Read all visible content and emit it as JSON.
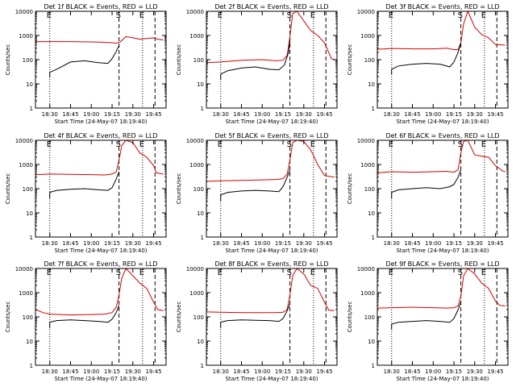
{
  "figure": {
    "ylabel": "Counts/sec",
    "xlabel": "Start Time (24-May-07 18:19:40)",
    "xticklabels": [
      "18:30",
      "18:45",
      "19:00",
      "19:15",
      "19:30",
      "19:45"
    ],
    "yticklabels": [
      "1",
      "10",
      "100",
      "1000",
      "10000"
    ],
    "markers": {
      "E": "E",
      "S": "S"
    },
    "colors": {
      "events": "#000000",
      "lld": "#d40000",
      "axes": "#000000",
      "background": "#ffffff"
    }
  },
  "chart_data": [
    {
      "type": "line",
      "title": "Det 1f BLACK = Events, RED = LLD",
      "xlabel": "Start Time (24-May-07 18:19:40)",
      "ylabel": "Counts/sec",
      "xlim": [
        "18:19:40",
        "19:54:00"
      ],
      "ylim": [
        1,
        10000
      ],
      "yscale": "log",
      "markers": [
        {
          "label": "E",
          "time": "18:30",
          "style": "dotted"
        },
        {
          "label": "S",
          "time": "19:20",
          "style": "dashed"
        },
        {
          "label": "E",
          "time": "19:37",
          "style": "dotted"
        },
        {
          "label": "",
          "time": "19:46",
          "style": "dashed"
        }
      ],
      "series": [
        {
          "name": "LLD",
          "color": "#d40000",
          "x": [
            "18:19:40",
            "18:30",
            "18:45",
            "19:00",
            "19:10",
            "19:15",
            "19:18",
            "19:21",
            "19:25",
            "19:30",
            "19:35",
            "19:40",
            "19:45",
            "19:48",
            "19:52"
          ],
          "y": [
            550,
            560,
            560,
            540,
            520,
            500,
            480,
            550,
            900,
            800,
            700,
            750,
            800,
            700,
            650
          ]
        },
        {
          "name": "Events",
          "color": "#000000",
          "x": [
            "18:30",
            "18:30",
            "18:35",
            "18:45",
            "18:55",
            "19:05",
            "19:12",
            "19:15",
            "19:18",
            "19:20"
          ],
          "y": [
            18,
            30,
            40,
            80,
            90,
            75,
            70,
            110,
            220,
            380
          ]
        }
      ]
    },
    {
      "type": "line",
      "title": "Det 2f BLACK = Events, RED = LLD",
      "xlabel": "Start Time (24-May-07 18:19:40)",
      "ylabel": "Counts/sec",
      "xlim": [
        "18:19:40",
        "19:54:00"
      ],
      "ylim": [
        1,
        10000
      ],
      "yscale": "log",
      "markers": [
        {
          "label": "E",
          "time": "18:30",
          "style": "dotted"
        },
        {
          "label": "S",
          "time": "19:20",
          "style": "dashed"
        },
        {
          "label": "E",
          "time": "19:37",
          "style": "dotted"
        },
        {
          "label": "",
          "time": "19:46",
          "style": "dashed"
        }
      ],
      "series": [
        {
          "name": "LLD",
          "color": "#d40000",
          "x": [
            "18:19:40",
            "18:30",
            "18:45",
            "19:00",
            "19:10",
            "19:15",
            "19:18",
            "19:20",
            "19:22",
            "19:25",
            "19:30",
            "19:35",
            "19:40",
            "19:45",
            "19:50",
            "19:52"
          ],
          "y": [
            75,
            80,
            95,
            100,
            90,
            95,
            150,
            900,
            8000,
            10000,
            4000,
            1600,
            1000,
            500,
            110,
            100
          ]
        },
        {
          "name": "Events",
          "color": "#000000",
          "x": [
            "18:30",
            "18:30",
            "18:35",
            "18:45",
            "18:55",
            "19:05",
            "19:12",
            "19:16",
            "19:19",
            "19:20"
          ],
          "y": [
            15,
            25,
            35,
            45,
            50,
            40,
            38,
            60,
            200,
            600
          ]
        }
      ]
    },
    {
      "type": "line",
      "title": "Det 3f BLACK = Events, RED = LLD",
      "xlabel": "Start Time (24-May-07 18:19:40)",
      "ylabel": "Counts/sec",
      "xlim": [
        "18:19:40",
        "19:54:00"
      ],
      "ylim": [
        1,
        10000
      ],
      "yscale": "log",
      "markers": [
        {
          "label": "E",
          "time": "18:30",
          "style": "dotted"
        },
        {
          "label": "S",
          "time": "19:20",
          "style": "dashed"
        },
        {
          "label": "E",
          "time": "19:37",
          "style": "dotted"
        },
        {
          "label": "",
          "time": "19:46",
          "style": "dashed"
        }
      ],
      "series": [
        {
          "name": "LLD",
          "color": "#d40000",
          "x": [
            "18:19:40",
            "18:30",
            "18:45",
            "19:00",
            "19:10",
            "19:15",
            "19:18",
            "19:20",
            "19:22",
            "19:25",
            "19:30",
            "19:35",
            "19:40",
            "19:45",
            "19:52"
          ],
          "y": [
            270,
            290,
            280,
            280,
            300,
            260,
            260,
            500,
            3000,
            10000,
            2200,
            1100,
            800,
            420,
            400
          ]
        },
        {
          "name": "Events",
          "color": "#000000",
          "x": [
            "18:30",
            "18:30",
            "18:35",
            "18:45",
            "18:55",
            "19:05",
            "19:12",
            "19:15",
            "19:18",
            "19:20"
          ],
          "y": [
            25,
            40,
            55,
            65,
            70,
            65,
            50,
            80,
            200,
            500
          ]
        }
      ]
    },
    {
      "type": "line",
      "title": "Det 4f BLACK = Events, RED = LLD",
      "xlabel": "Start Time (24-May-07 18:19:40)",
      "ylabel": "Counts/sec",
      "xlim": [
        "18:19:40",
        "19:54:00"
      ],
      "ylim": [
        1,
        10000
      ],
      "yscale": "log",
      "markers": [
        {
          "label": "E",
          "time": "18:30",
          "style": "dotted"
        },
        {
          "label": "S",
          "time": "19:20",
          "style": "dashed"
        },
        {
          "label": "E",
          "time": "19:37",
          "style": "dotted"
        },
        {
          "label": "",
          "time": "19:46",
          "style": "dashed"
        }
      ],
      "series": [
        {
          "name": "LLD",
          "color": "#d40000",
          "x": [
            "18:19:40",
            "18:30",
            "18:45",
            "19:00",
            "19:10",
            "19:15",
            "19:18",
            "19:20",
            "19:22",
            "19:25",
            "19:30",
            "19:35",
            "19:40",
            "19:45",
            "19:47",
            "19:52"
          ],
          "y": [
            380,
            400,
            390,
            380,
            370,
            400,
            500,
            1500,
            6000,
            10000,
            8000,
            3000,
            2000,
            900,
            450,
            400
          ]
        },
        {
          "name": "Events",
          "color": "#000000",
          "x": [
            "18:30",
            "18:30",
            "18:35",
            "18:45",
            "18:55",
            "19:05",
            "19:12",
            "19:15",
            "19:18",
            "19:20"
          ],
          "y": [
            40,
            70,
            85,
            95,
            100,
            90,
            85,
            110,
            250,
            500
          ]
        }
      ]
    },
    {
      "type": "line",
      "title": "Det 5f BLACK = Events, RED = LLD",
      "xlabel": "Start Time (24-May-07 18:19:40)",
      "ylabel": "Counts/sec",
      "xlim": [
        "18:19:40",
        "19:54:00"
      ],
      "ylim": [
        1,
        10000
      ],
      "yscale": "log",
      "markers": [
        {
          "label": "E",
          "time": "18:30",
          "style": "dotted"
        },
        {
          "label": "S",
          "time": "19:20",
          "style": "dashed"
        },
        {
          "label": "E",
          "time": "19:37",
          "style": "dotted"
        },
        {
          "label": "",
          "time": "19:46",
          "style": "dashed"
        }
      ],
      "series": [
        {
          "name": "LLD",
          "color": "#d40000",
          "x": [
            "18:19:40",
            "18:30",
            "18:45",
            "19:00",
            "19:10",
            "19:15",
            "19:18",
            "19:20",
            "19:22",
            "19:25",
            "19:30",
            "19:35",
            "19:40",
            "19:45",
            "19:52"
          ],
          "y": [
            200,
            210,
            220,
            230,
            240,
            260,
            400,
            1500,
            8000,
            10000,
            9000,
            4000,
            1000,
            350,
            300
          ]
        },
        {
          "name": "Events",
          "color": "#000000",
          "x": [
            "18:30",
            "18:30",
            "18:35",
            "18:45",
            "18:55",
            "19:05",
            "19:12",
            "19:15",
            "19:18",
            "19:20"
          ],
          "y": [
            30,
            55,
            70,
            80,
            85,
            80,
            75,
            120,
            300,
            600
          ]
        }
      ]
    },
    {
      "type": "line",
      "title": "Det 6f BLACK = Events, RED = LLD",
      "xlabel": "Start Time (24-May-07 18:19:40)",
      "ylabel": "Counts/sec",
      "xlim": [
        "18:19:40",
        "19:54:00"
      ],
      "ylim": [
        1,
        10000
      ],
      "yscale": "log",
      "markers": [
        {
          "label": "E",
          "time": "18:30",
          "style": "dotted"
        },
        {
          "label": "S",
          "time": "19:20",
          "style": "dashed"
        },
        {
          "label": "E",
          "time": "19:37",
          "style": "dotted"
        },
        {
          "label": "",
          "time": "19:46",
          "style": "dashed"
        }
      ],
      "series": [
        {
          "name": "LLD",
          "color": "#d40000",
          "x": [
            "18:19:40",
            "18:30",
            "18:45",
            "19:00",
            "19:10",
            "19:15",
            "19:18",
            "19:20",
            "19:22",
            "19:25",
            "19:30",
            "19:35",
            "19:40",
            "19:45",
            "19:50",
            "19:52"
          ],
          "y": [
            450,
            500,
            480,
            500,
            520,
            480,
            600,
            3000,
            9000,
            10000,
            2500,
            2200,
            2000,
            900,
            550,
            500
          ]
        },
        {
          "name": "Events",
          "color": "#000000",
          "x": [
            "18:30",
            "18:30",
            "18:35",
            "18:45",
            "18:55",
            "19:05",
            "19:12",
            "19:15",
            "19:18",
            "19:20"
          ],
          "y": [
            40,
            70,
            90,
            100,
            110,
            100,
            120,
            150,
            300,
            600
          ]
        }
      ]
    },
    {
      "type": "line",
      "title": "Det 7f BLACK = Events, RED = LLD",
      "xlabel": "Start Time (24-May-07 18:19:40)",
      "ylabel": "Counts/sec",
      "xlim": [
        "18:19:40",
        "19:54:00"
      ],
      "ylim": [
        1,
        10000
      ],
      "yscale": "log",
      "markers": [
        {
          "label": "E",
          "time": "18:30",
          "style": "dotted"
        },
        {
          "label": "S",
          "time": "19:20",
          "style": "dashed"
        },
        {
          "label": "E",
          "time": "19:37",
          "style": "dotted"
        },
        {
          "label": "",
          "time": "19:46",
          "style": "dashed"
        }
      ],
      "series": [
        {
          "name": "LLD",
          "color": "#d40000",
          "x": [
            "18:19:40",
            "18:25",
            "18:30",
            "18:45",
            "19:00",
            "19:10",
            "19:15",
            "19:18",
            "19:20",
            "19:22",
            "19:25",
            "19:30",
            "19:35",
            "19:40",
            "19:45",
            "19:48",
            "19:52"
          ],
          "y": [
            200,
            150,
            130,
            120,
            125,
            130,
            150,
            250,
            800,
            4000,
            10000,
            5000,
            2500,
            1500,
            400,
            200,
            180
          ]
        },
        {
          "name": "Events",
          "color": "#000000",
          "x": [
            "18:30",
            "18:30",
            "18:35",
            "18:45",
            "18:55",
            "19:05",
            "19:12",
            "19:15",
            "19:18",
            "19:20"
          ],
          "y": [
            35,
            60,
            70,
            75,
            70,
            65,
            60,
            80,
            150,
            300
          ]
        }
      ]
    },
    {
      "type": "line",
      "title": "Det 8f BLACK = Events, RED = LLD",
      "xlabel": "Start Time (24-May-07 18:19:40)",
      "ylabel": "Counts/sec",
      "xlim": [
        "18:19:40",
        "19:54:00"
      ],
      "ylim": [
        1,
        10000
      ],
      "yscale": "log",
      "markers": [
        {
          "label": "E",
          "time": "18:30",
          "style": "dotted"
        },
        {
          "label": "S",
          "time": "19:20",
          "style": "dashed"
        },
        {
          "label": "E",
          "time": "19:37",
          "style": "dotted"
        },
        {
          "label": "",
          "time": "19:46",
          "style": "dashed"
        }
      ],
      "series": [
        {
          "name": "LLD",
          "color": "#d40000",
          "x": [
            "18:19:40",
            "18:30",
            "18:45",
            "19:00",
            "19:10",
            "19:15",
            "19:18",
            "19:20",
            "19:22",
            "19:25",
            "19:30",
            "19:35",
            "19:40",
            "19:45",
            "19:48",
            "19:52"
          ],
          "y": [
            160,
            155,
            150,
            150,
            150,
            155,
            200,
            800,
            5000,
            10000,
            6000,
            2000,
            1500,
            400,
            190,
            180
          ]
        },
        {
          "name": "Events",
          "color": "#000000",
          "x": [
            "18:30",
            "18:30",
            "18:35",
            "18:45",
            "18:55",
            "19:05",
            "19:12",
            "19:15",
            "19:18",
            "19:20"
          ],
          "y": [
            35,
            60,
            70,
            75,
            72,
            70,
            65,
            85,
            180,
            350
          ]
        }
      ]
    },
    {
      "type": "line",
      "title": "Det 9f BLACK = Events, RED = LLD",
      "xlabel": "Start Time (24-May-07 18:19:40)",
      "ylabel": "Counts/sec",
      "xlim": [
        "18:19:40",
        "19:54:00"
      ],
      "ylim": [
        1,
        10000
      ],
      "yscale": "log",
      "markers": [
        {
          "label": "E",
          "time": "18:30",
          "style": "dotted"
        },
        {
          "label": "S",
          "time": "19:20",
          "style": "dashed"
        },
        {
          "label": "E",
          "time": "19:37",
          "style": "dotted"
        },
        {
          "label": "",
          "time": "19:46",
          "style": "dashed"
        }
      ],
      "series": [
        {
          "name": "LLD",
          "color": "#d40000",
          "x": [
            "18:19:40",
            "18:30",
            "18:45",
            "19:00",
            "19:10",
            "19:15",
            "19:18",
            "19:20",
            "19:22",
            "19:25",
            "19:30",
            "19:35",
            "19:40",
            "19:45",
            "19:48",
            "19:52"
          ],
          "y": [
            230,
            240,
            250,
            240,
            230,
            240,
            280,
            700,
            5000,
            10000,
            6000,
            2500,
            1500,
            450,
            300,
            280
          ]
        },
        {
          "name": "Events",
          "color": "#000000",
          "x": [
            "18:30",
            "18:30",
            "18:35",
            "18:45",
            "18:55",
            "19:05",
            "19:12",
            "19:15",
            "19:18",
            "19:20"
          ],
          "y": [
            30,
            50,
            60,
            65,
            70,
            65,
            60,
            85,
            200,
            400
          ]
        }
      ]
    }
  ]
}
